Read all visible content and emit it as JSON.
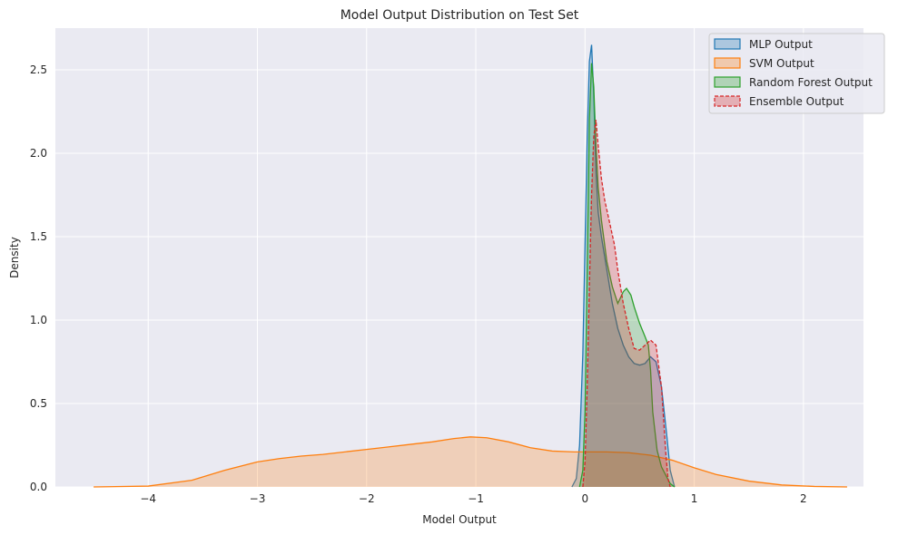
{
  "chart_data": {
    "type": "area",
    "title": "Model Output Distribution on Test Set",
    "xlabel": "Model Output",
    "ylabel": "Density",
    "xlim": [
      -4.85,
      2.55
    ],
    "ylim": [
      0,
      2.75
    ],
    "x_ticks": [
      -4,
      -3,
      -2,
      -1,
      0,
      1,
      2
    ],
    "y_ticks": [
      0.0,
      0.5,
      1.0,
      1.5,
      2.0,
      2.5
    ],
    "x_tick_labels": [
      "−4",
      "−3",
      "−2",
      "−1",
      "0",
      "1",
      "2"
    ],
    "y_tick_labels": [
      "0.0",
      "0.5",
      "1.0",
      "1.5",
      "2.0",
      "2.5"
    ],
    "grid": true,
    "legend_position": "top-right",
    "series": [
      {
        "name": "MLP Output",
        "color": "#1f77b4",
        "dashed": false,
        "x": [
          -0.12,
          -0.08,
          -0.05,
          -0.02,
          0.0,
          0.02,
          0.04,
          0.06,
          0.08,
          0.1,
          0.12,
          0.15,
          0.2,
          0.25,
          0.3,
          0.35,
          0.4,
          0.45,
          0.5,
          0.55,
          0.6,
          0.65,
          0.7,
          0.75,
          0.78,
          0.82
        ],
        "y": [
          0.0,
          0.05,
          0.25,
          0.8,
          1.45,
          2.1,
          2.55,
          2.65,
          2.35,
          1.9,
          1.65,
          1.5,
          1.3,
          1.1,
          0.95,
          0.85,
          0.78,
          0.74,
          0.73,
          0.74,
          0.78,
          0.75,
          0.6,
          0.3,
          0.1,
          0.0
        ]
      },
      {
        "name": "SVM Output",
        "color": "#ff7f0e",
        "dashed": false,
        "x": [
          -4.5,
          -4.0,
          -3.6,
          -3.3,
          -3.0,
          -2.8,
          -2.6,
          -2.4,
          -2.2,
          -2.0,
          -1.8,
          -1.6,
          -1.4,
          -1.2,
          -1.05,
          -0.9,
          -0.7,
          -0.5,
          -0.3,
          -0.1,
          0.0,
          0.2,
          0.4,
          0.6,
          0.8,
          1.0,
          1.2,
          1.5,
          1.8,
          2.1,
          2.4
        ],
        "y": [
          0.0,
          0.005,
          0.04,
          0.1,
          0.15,
          0.17,
          0.185,
          0.195,
          0.21,
          0.225,
          0.24,
          0.255,
          0.27,
          0.29,
          0.3,
          0.295,
          0.27,
          0.235,
          0.215,
          0.21,
          0.21,
          0.21,
          0.205,
          0.19,
          0.16,
          0.115,
          0.075,
          0.035,
          0.012,
          0.003,
          0.0
        ]
      },
      {
        "name": "Random Forest Output",
        "color": "#2ca02c",
        "dashed": false,
        "x": [
          -0.05,
          -0.02,
          0.0,
          0.02,
          0.04,
          0.06,
          0.08,
          0.1,
          0.12,
          0.15,
          0.2,
          0.25,
          0.3,
          0.35,
          0.38,
          0.42,
          0.45,
          0.5,
          0.55,
          0.58,
          0.6,
          0.62,
          0.66,
          0.7,
          0.74,
          0.78,
          0.82
        ],
        "y": [
          0.0,
          0.1,
          0.45,
          1.3,
          2.2,
          2.54,
          2.4,
          2.05,
          1.8,
          1.6,
          1.35,
          1.2,
          1.1,
          1.17,
          1.19,
          1.15,
          1.08,
          0.98,
          0.9,
          0.85,
          0.7,
          0.45,
          0.22,
          0.12,
          0.07,
          0.02,
          0.0
        ]
      },
      {
        "name": "Ensemble Output",
        "color": "#d62728",
        "dashed": true,
        "x": [
          -0.02,
          0.0,
          0.02,
          0.04,
          0.06,
          0.08,
          0.1,
          0.12,
          0.15,
          0.18,
          0.22,
          0.27,
          0.3,
          0.35,
          0.4,
          0.45,
          0.5,
          0.55,
          0.6,
          0.65,
          0.7,
          0.72,
          0.74,
          0.76,
          0.78
        ],
        "y": [
          0.0,
          0.15,
          0.6,
          1.2,
          1.75,
          2.1,
          2.2,
          2.05,
          1.85,
          1.72,
          1.6,
          1.45,
          1.3,
          1.1,
          0.95,
          0.83,
          0.82,
          0.85,
          0.88,
          0.85,
          0.6,
          0.4,
          0.2,
          0.05,
          0.0
        ]
      }
    ]
  }
}
